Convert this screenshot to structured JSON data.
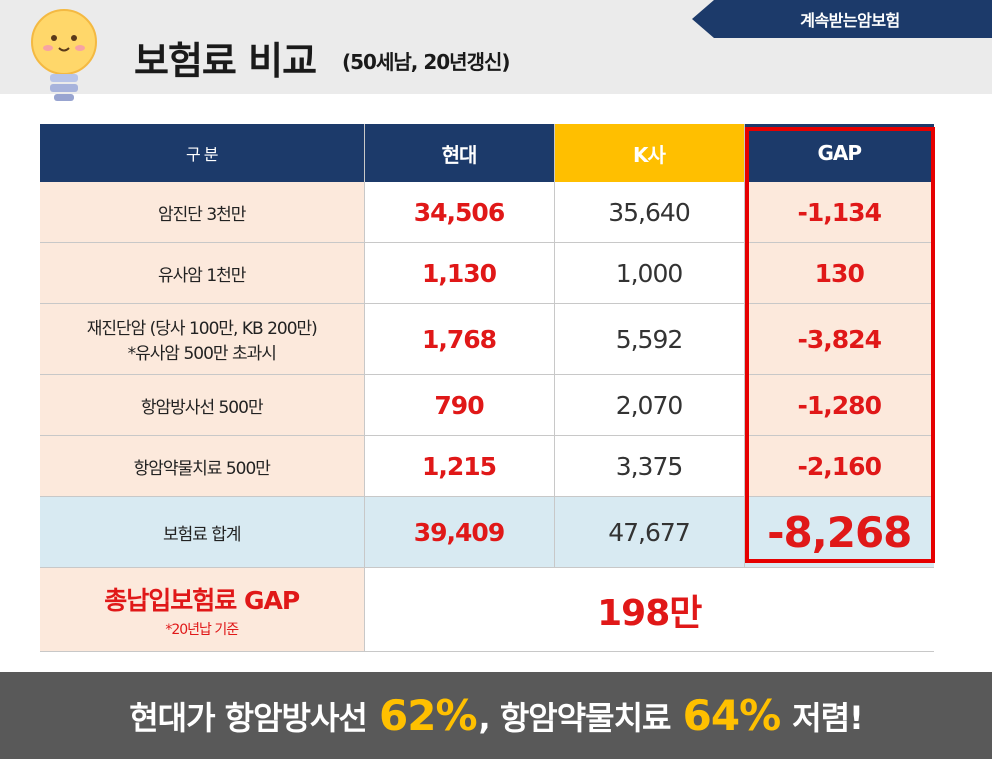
{
  "header": {
    "title": "보험료 비교",
    "subtitle": "(50세남, 20년갱신)",
    "ribbon_label": "계속받는암보험"
  },
  "table": {
    "headers": [
      "구 분",
      "현대",
      "K사",
      "GAP"
    ],
    "rows": [
      {
        "label": "암진단 3천만",
        "hyundai": "34,506",
        "k": "35,640",
        "gap": "-1,134"
      },
      {
        "label": "유사암 1천만",
        "hyundai": "1,130",
        "k": "1,000",
        "gap": "130"
      },
      {
        "label_line1": "재진단암 (당사 100만, KB 200만)",
        "label_line2": "*유사암 500만 초과시",
        "hyundai": "1,768",
        "k": "5,592",
        "gap": "-3,824"
      },
      {
        "label": "항암방사선 500만",
        "hyundai": "790",
        "k": "2,070",
        "gap": "-1,280"
      },
      {
        "label": "항암약물치료 500만",
        "hyundai": "1,215",
        "k": "3,375",
        "gap": "-2,160"
      }
    ],
    "total": {
      "label": "보험료 합계",
      "hyundai": "39,409",
      "k": "47,677",
      "gap": "-8,268"
    },
    "premium": {
      "title": "총납입보험료 GAP",
      "note": "*20년납 기준",
      "value": "198만"
    }
  },
  "banner": {
    "part1": "현대가 항암방사선 ",
    "hl1": "62%",
    "part2": ", 항암약물치료 ",
    "hl2": "64%",
    "part3": " 저렴!"
  },
  "colors": {
    "navy": "#1c3a6a",
    "yellow": "#ffbf00",
    "red": "#e01818",
    "peach": "#fce9dc",
    "light_blue": "#d8eaf2",
    "banner_gray": "#595959",
    "highlight_yellow": "#ffc000"
  },
  "icons": {
    "mascot": "lightbulb-mascot-icon"
  }
}
